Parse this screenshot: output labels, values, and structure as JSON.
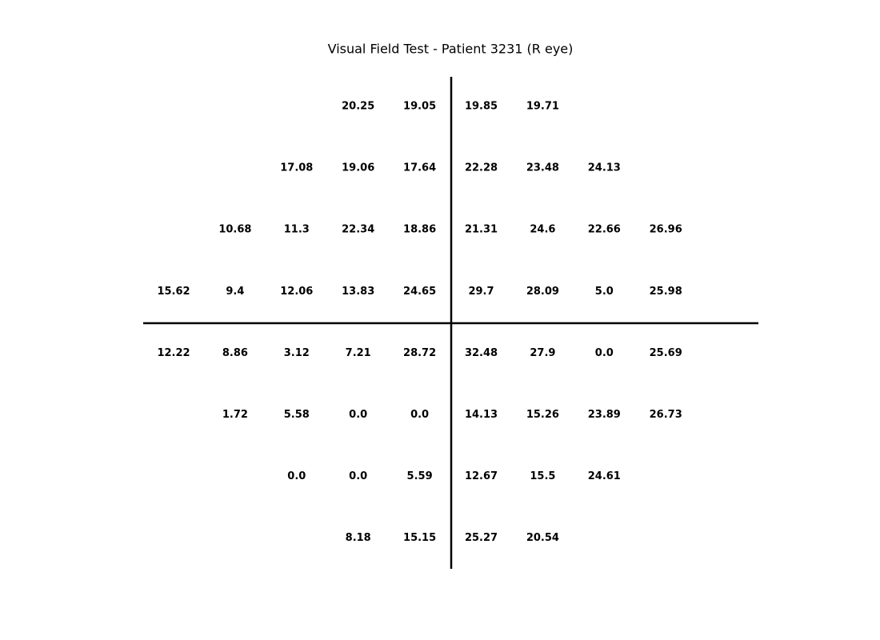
{
  "title": "Visual Field Test - Patient 3231 (R eye)",
  "grid": {
    "rows": [
      [
        null,
        null,
        null,
        "20.25",
        "19.05",
        "19.85",
        "19.71",
        null,
        null
      ],
      [
        null,
        null,
        "17.08",
        "19.06",
        "17.64",
        "22.28",
        "23.48",
        "24.13",
        null
      ],
      [
        null,
        "10.68",
        "11.3",
        "22.34",
        "18.86",
        "21.31",
        "24.6",
        "22.66",
        "26.96"
      ],
      [
        "15.62",
        "9.4",
        "12.06",
        "13.83",
        "24.65",
        "29.7",
        "28.09",
        "5.0",
        "25.98"
      ],
      [
        "12.22",
        "8.86",
        "3.12",
        "7.21",
        "28.72",
        "32.48",
        "27.9",
        "0.0",
        "25.69"
      ],
      [
        null,
        "1.72",
        "5.58",
        "0.0",
        "0.0",
        "14.13",
        "15.26",
        "23.89",
        "26.73"
      ],
      [
        null,
        null,
        "0.0",
        "0.0",
        "5.59",
        "12.67",
        "15.5",
        "24.61",
        null
      ],
      [
        null,
        null,
        null,
        "8.18",
        "15.15",
        "25.27",
        "20.54",
        null,
        null
      ]
    ]
  }
}
